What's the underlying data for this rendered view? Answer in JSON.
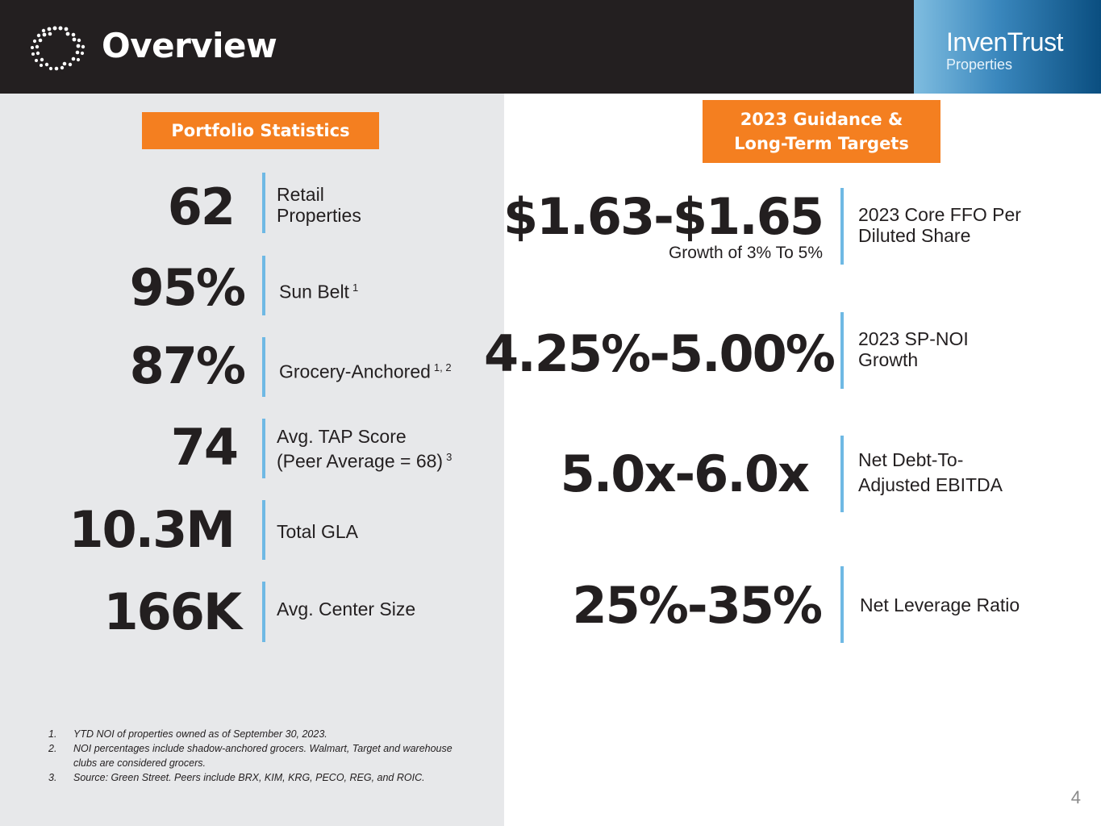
{
  "header": {
    "title": "Overview",
    "brand_name": "InvenTrust",
    "brand_sub": "Properties"
  },
  "portfolio": {
    "title": "Portfolio Statistics",
    "stats": [
      {
        "value": "62",
        "label_line1": "Retail",
        "label_line2": "Properties",
        "sup": ""
      },
      {
        "value": "95%",
        "label_line1": "Sun Belt",
        "label_line2": "",
        "sup": "1"
      },
      {
        "value": "87%",
        "label_line1": "Grocery-Anchored",
        "label_line2": "",
        "sup": "1, 2"
      },
      {
        "value": "74",
        "label_line1": "Avg. TAP Score",
        "label_line2": "(Peer Average = 68)",
        "sup": "3"
      },
      {
        "value": "10.3M",
        "label_line1": "Total GLA",
        "label_line2": "",
        "sup": ""
      },
      {
        "value": "166K",
        "label_line1": "Avg. Center Size",
        "label_line2": "",
        "sup": ""
      }
    ]
  },
  "guidance": {
    "title_line1": "2023 Guidance &",
    "title_line2": "Long-Term Targets",
    "items": [
      {
        "value": "$1.63-$1.65",
        "sub": "Growth of 3% To 5%",
        "label_line1": "2023 Core FFO Per",
        "label_line2": "Diluted Share"
      },
      {
        "value": "4.25%-5.00%",
        "sub": "",
        "label_line1": "2023 SP-NOI",
        "label_line2": "Growth"
      },
      {
        "value": "5.0x-6.0x",
        "sub": "",
        "label_line1": "Net Debt-To-",
        "label_line2": "Adjusted EBITDA"
      },
      {
        "value": "25%-35%",
        "sub": "",
        "label_line1": "Net Leverage Ratio",
        "label_line2": ""
      }
    ]
  },
  "footnotes": [
    {
      "n": "1.",
      "text": "YTD NOI of properties owned as of September 30, 2023."
    },
    {
      "n": "2.",
      "text": "NOI percentages include shadow-anchored grocers. Walmart, Target and warehouse clubs are considered grocers."
    },
    {
      "n": "3.",
      "text": "Source: Green Street.  Peers include BRX, KIM, KRG, PECO, REG, and ROIC."
    }
  ],
  "page_number": "4",
  "colors": {
    "header_bg": "#231f20",
    "accent_orange": "#f47f20",
    "divider_blue": "#6fb9e4",
    "left_panel_bg": "#e7e8ea"
  }
}
